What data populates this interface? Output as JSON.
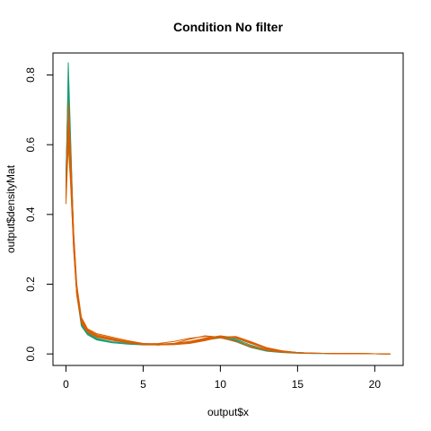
{
  "chart_data": {
    "type": "line",
    "title": "Condition No filter",
    "xlabel": "output$x",
    "ylabel": "output$densityMat",
    "xlim": [
      -0.84,
      21.84
    ],
    "ylim": [
      -0.033,
      0.863
    ],
    "xticks": [
      0,
      5,
      10,
      15,
      20
    ],
    "yticks": [
      0.0,
      0.2,
      0.4,
      0.6,
      0.8
    ],
    "xtick_labels": [
      "0",
      "5",
      "10",
      "15",
      "20"
    ],
    "ytick_labels": [
      "0.0",
      "0.2",
      "0.4",
      "0.6",
      "0.8"
    ],
    "grid": false,
    "legend": "none",
    "series_groups": [
      {
        "color": "#1b9e77",
        "curves": [
          {
            "x": [
              0,
              0.15,
              0.3,
              0.5,
              0.7,
              1.0,
              1.4,
              2,
              3,
              4,
              5,
              6,
              7,
              8,
              9,
              10,
              11,
              12,
              13,
              14,
              15,
              16,
              18,
              21
            ],
            "y": [
              0.45,
              0.835,
              0.62,
              0.33,
              0.18,
              0.09,
              0.06,
              0.045,
              0.035,
              0.03,
              0.028,
              0.028,
              0.03,
              0.035,
              0.045,
              0.05,
              0.04,
              0.02,
              0.01,
              0.005,
              0.003,
              0.002,
              0.001,
              0.0
            ]
          },
          {
            "x": [
              0,
              0.15,
              0.3,
              0.5,
              0.7,
              1.0,
              1.4,
              2,
              3,
              4,
              5,
              6,
              7,
              8,
              9,
              10,
              11,
              12,
              13,
              14,
              15,
              16,
              18,
              21
            ],
            "y": [
              0.5,
              0.79,
              0.6,
              0.34,
              0.19,
              0.085,
              0.058,
              0.043,
              0.034,
              0.029,
              0.027,
              0.027,
              0.029,
              0.033,
              0.043,
              0.048,
              0.042,
              0.025,
              0.012,
              0.006,
              0.003,
              0.002,
              0.001,
              0.0
            ]
          },
          {
            "x": [
              0,
              0.15,
              0.3,
              0.5,
              0.7,
              1.0,
              1.4,
              2,
              3,
              4,
              5,
              6,
              7,
              8,
              9,
              10,
              11,
              12,
              13,
              14,
              15,
              16,
              18,
              21
            ],
            "y": [
              0.48,
              0.76,
              0.58,
              0.32,
              0.17,
              0.08,
              0.055,
              0.04,
              0.032,
              0.028,
              0.026,
              0.026,
              0.028,
              0.032,
              0.04,
              0.046,
              0.038,
              0.022,
              0.01,
              0.005,
              0.003,
              0.002,
              0.001,
              0.0
            ]
          },
          {
            "x": [
              0,
              0.15,
              0.3,
              0.5,
              0.7,
              1.0,
              1.4,
              2,
              3,
              4,
              5,
              6,
              7,
              8,
              9,
              10,
              11,
              12,
              13,
              14,
              15,
              16,
              18,
              21
            ],
            "y": [
              0.52,
              0.73,
              0.56,
              0.33,
              0.18,
              0.08,
              0.056,
              0.042,
              0.033,
              0.029,
              0.027,
              0.027,
              0.029,
              0.034,
              0.042,
              0.047,
              0.035,
              0.018,
              0.008,
              0.004,
              0.002,
              0.001,
              0.001,
              0.0
            ]
          }
        ]
      },
      {
        "color": "#d95f02",
        "curves": [
          {
            "x": [
              0,
              0.15,
              0.3,
              0.5,
              0.7,
              1.0,
              1.4,
              2,
              3,
              4,
              5,
              6,
              7,
              8,
              9,
              10,
              11,
              12,
              13,
              14,
              15,
              16,
              18,
              21
            ],
            "y": [
              0.45,
              0.72,
              0.58,
              0.34,
              0.19,
              0.1,
              0.07,
              0.055,
              0.045,
              0.035,
              0.028,
              0.026,
              0.028,
              0.034,
              0.042,
              0.05,
              0.045,
              0.03,
              0.015,
              0.008,
              0.004,
              0.002,
              0.001,
              0.0
            ]
          },
          {
            "x": [
              0,
              0.15,
              0.3,
              0.5,
              0.7,
              1.0,
              1.4,
              2,
              3,
              4,
              5,
              6,
              7,
              8,
              9,
              10,
              11,
              12,
              13,
              14,
              15,
              16,
              18,
              21
            ],
            "y": [
              0.46,
              0.7,
              0.57,
              0.35,
              0.2,
              0.105,
              0.072,
              0.058,
              0.048,
              0.038,
              0.03,
              0.027,
              0.027,
              0.03,
              0.038,
              0.048,
              0.05,
              0.035,
              0.018,
              0.009,
              0.004,
              0.002,
              0.001,
              0.0
            ]
          },
          {
            "x": [
              0,
              0.15,
              0.3,
              0.5,
              0.7,
              1.0,
              1.4,
              2,
              3,
              4,
              5,
              6,
              7,
              8,
              9,
              10,
              11,
              12,
              13,
              14,
              15,
              16,
              18,
              21
            ],
            "y": [
              0.47,
              0.68,
              0.55,
              0.33,
              0.19,
              0.1,
              0.068,
              0.052,
              0.042,
              0.034,
              0.029,
              0.03,
              0.036,
              0.045,
              0.05,
              0.046,
              0.036,
              0.022,
              0.012,
              0.006,
              0.003,
              0.002,
              0.001,
              0.0
            ]
          },
          {
            "x": [
              0,
              0.15,
              0.3,
              0.5,
              0.7,
              1.0,
              1.4,
              2,
              3,
              4,
              5,
              6,
              7,
              8,
              9,
              10,
              11,
              12,
              13,
              14,
              15,
              16,
              18,
              21
            ],
            "y": [
              0.44,
              0.66,
              0.54,
              0.32,
              0.18,
              0.095,
              0.066,
              0.05,
              0.04,
              0.033,
              0.028,
              0.026,
              0.027,
              0.031,
              0.04,
              0.05,
              0.048,
              0.032,
              0.017,
              0.008,
              0.004,
              0.002,
              0.001,
              0.0
            ]
          },
          {
            "x": [
              0,
              0.15,
              0.3,
              0.5,
              0.7,
              1.0,
              1.4,
              2,
              3,
              4,
              5,
              6,
              7,
              8,
              9,
              10,
              11,
              12,
              13,
              14,
              15,
              16,
              18,
              21
            ],
            "y": [
              0.48,
              0.64,
              0.52,
              0.31,
              0.17,
              0.09,
              0.064,
              0.05,
              0.04,
              0.032,
              0.027,
              0.026,
              0.03,
              0.042,
              0.052,
              0.048,
              0.036,
              0.02,
              0.01,
              0.005,
              0.003,
              0.002,
              0.001,
              0.0
            ]
          },
          {
            "x": [
              0,
              0.15,
              0.3,
              0.5,
              0.7,
              1.0,
              1.4,
              2,
              3,
              4,
              5,
              6,
              7,
              8,
              9,
              10,
              11,
              12,
              13,
              14,
              15,
              16,
              18,
              21
            ],
            "y": [
              0.46,
              0.62,
              0.5,
              0.3,
              0.17,
              0.092,
              0.065,
              0.052,
              0.043,
              0.036,
              0.03,
              0.028,
              0.03,
              0.036,
              0.045,
              0.052,
              0.046,
              0.03,
              0.015,
              0.007,
              0.003,
              0.002,
              0.001,
              0.0
            ]
          },
          {
            "x": [
              0,
              0.15,
              0.3,
              0.5,
              0.7,
              1.0,
              1.4,
              2,
              3,
              4,
              5,
              6,
              7,
              8,
              9,
              10,
              11,
              12,
              13,
              14,
              15,
              16,
              18,
              21
            ],
            "y": [
              0.43,
              0.6,
              0.49,
              0.3,
              0.17,
              0.088,
              0.062,
              0.048,
              0.039,
              0.032,
              0.027,
              0.026,
              0.028,
              0.034,
              0.043,
              0.05,
              0.047,
              0.033,
              0.018,
              0.009,
              0.004,
              0.002,
              0.001,
              0.0
            ]
          }
        ]
      }
    ]
  }
}
